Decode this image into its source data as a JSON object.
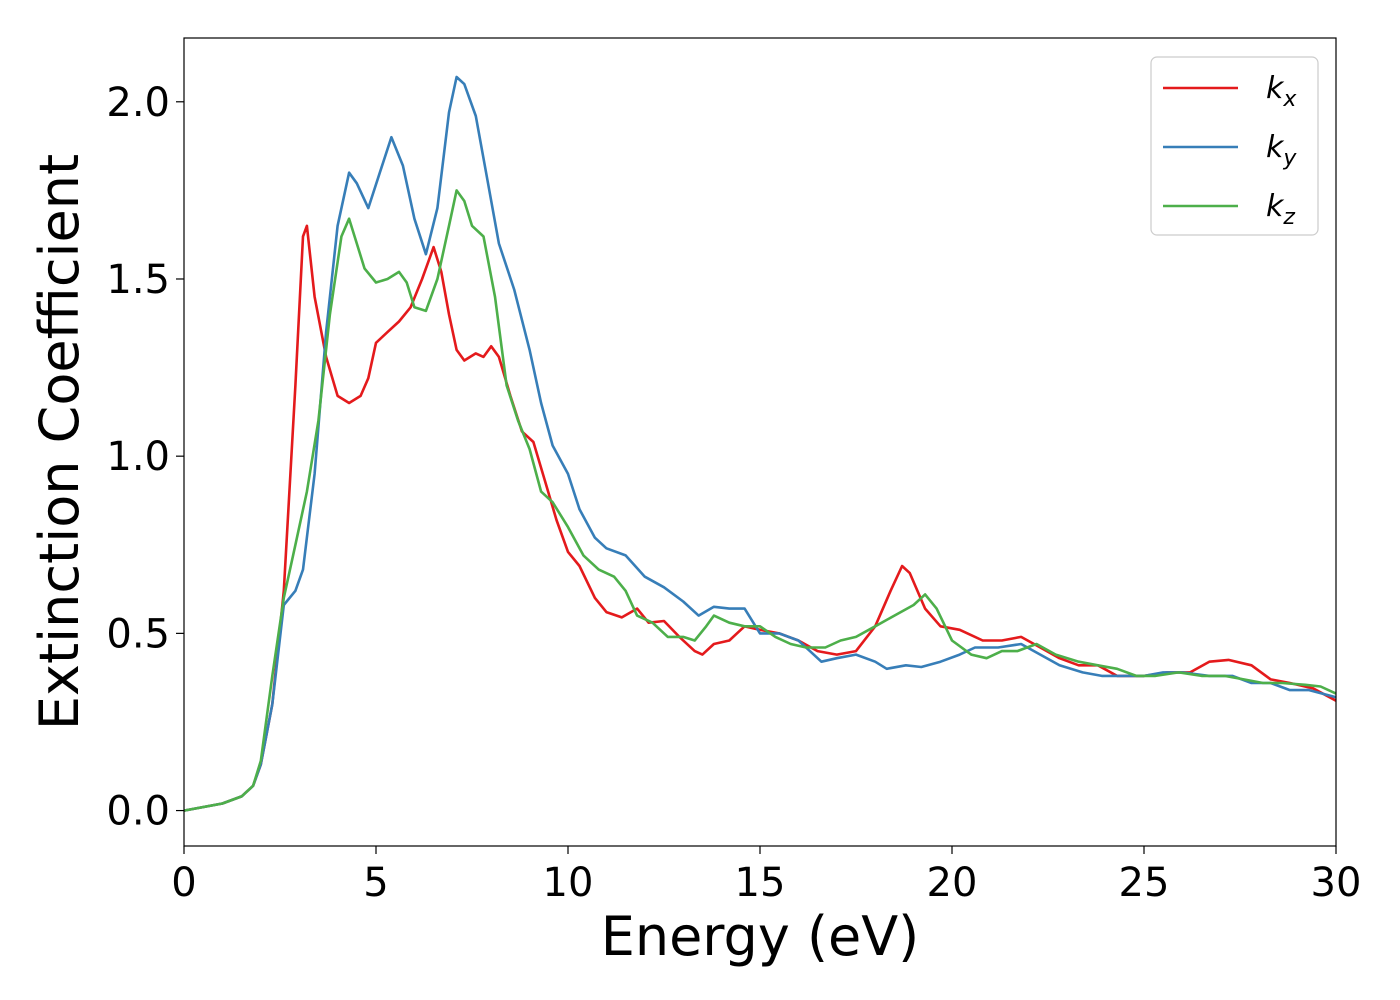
{
  "chart_data": {
    "type": "line",
    "xlabel": "Energy (eV)",
    "ylabel": "Extinction Coefficient",
    "xlim": [
      0,
      30
    ],
    "ylim": [
      -0.1,
      2.18
    ],
    "xticks": [
      "0",
      "5",
      "10",
      "15",
      "20",
      "25",
      "30"
    ],
    "yticks": [
      "0.0",
      "0.5",
      "1.0",
      "1.5",
      "2.0"
    ],
    "grid": false,
    "legend_position": "top-right",
    "series": [
      {
        "name": "k_x",
        "legend": {
          "base": "k",
          "sub": "x"
        },
        "color": "#e41a1c",
        "points": [
          [
            0,
            0
          ],
          [
            1,
            0.02
          ],
          [
            1.5,
            0.04
          ],
          [
            1.8,
            0.07
          ],
          [
            2,
            0.13
          ],
          [
            2.3,
            0.3
          ],
          [
            2.6,
            0.62
          ],
          [
            2.9,
            1.2
          ],
          [
            3.1,
            1.62
          ],
          [
            3.2,
            1.65
          ],
          [
            3.4,
            1.45
          ],
          [
            3.7,
            1.28
          ],
          [
            4,
            1.17
          ],
          [
            4.3,
            1.15
          ],
          [
            4.6,
            1.17
          ],
          [
            4.8,
            1.22
          ],
          [
            5,
            1.32
          ],
          [
            5.3,
            1.35
          ],
          [
            5.6,
            1.38
          ],
          [
            5.9,
            1.42
          ],
          [
            6.2,
            1.5
          ],
          [
            6.5,
            1.59
          ],
          [
            6.7,
            1.52
          ],
          [
            6.9,
            1.4
          ],
          [
            7.1,
            1.3
          ],
          [
            7.3,
            1.27
          ],
          [
            7.6,
            1.29
          ],
          [
            7.8,
            1.28
          ],
          [
            8,
            1.31
          ],
          [
            8.2,
            1.28
          ],
          [
            8.5,
            1.17
          ],
          [
            8.8,
            1.07
          ],
          [
            9.1,
            1.04
          ],
          [
            9.4,
            0.93
          ],
          [
            9.7,
            0.82
          ],
          [
            10,
            0.73
          ],
          [
            10.3,
            0.69
          ],
          [
            10.7,
            0.6
          ],
          [
            11,
            0.56
          ],
          [
            11.4,
            0.545
          ],
          [
            11.8,
            0.57
          ],
          [
            12.1,
            0.53
          ],
          [
            12.5,
            0.535
          ],
          [
            12.9,
            0.49
          ],
          [
            13.3,
            0.45
          ],
          [
            13.5,
            0.44
          ],
          [
            13.8,
            0.47
          ],
          [
            14.2,
            0.48
          ],
          [
            14.6,
            0.52
          ],
          [
            15,
            0.51
          ],
          [
            15.5,
            0.5
          ],
          [
            16,
            0.48
          ],
          [
            16.5,
            0.45
          ],
          [
            17,
            0.44
          ],
          [
            17.5,
            0.45
          ],
          [
            18,
            0.52
          ],
          [
            18.4,
            0.62
          ],
          [
            18.7,
            0.69
          ],
          [
            18.9,
            0.67
          ],
          [
            19.3,
            0.57
          ],
          [
            19.7,
            0.52
          ],
          [
            20.2,
            0.51
          ],
          [
            20.8,
            0.48
          ],
          [
            21.3,
            0.48
          ],
          [
            21.8,
            0.49
          ],
          [
            22.3,
            0.46
          ],
          [
            22.8,
            0.43
          ],
          [
            23.3,
            0.41
          ],
          [
            23.8,
            0.41
          ],
          [
            24.3,
            0.38
          ],
          [
            25,
            0.38
          ],
          [
            25.6,
            0.39
          ],
          [
            26.2,
            0.39
          ],
          [
            26.7,
            0.42
          ],
          [
            27.2,
            0.425
          ],
          [
            27.8,
            0.41
          ],
          [
            28.3,
            0.37
          ],
          [
            28.8,
            0.36
          ],
          [
            29.4,
            0.345
          ],
          [
            30,
            0.31
          ]
        ]
      },
      {
        "name": "k_y",
        "legend": {
          "base": "k",
          "sub": "y"
        },
        "color": "#377eb8",
        "points": [
          [
            0,
            0
          ],
          [
            1,
            0.02
          ],
          [
            1.5,
            0.04
          ],
          [
            1.8,
            0.07
          ],
          [
            2,
            0.13
          ],
          [
            2.3,
            0.3
          ],
          [
            2.6,
            0.58
          ],
          [
            2.9,
            0.62
          ],
          [
            3.1,
            0.68
          ],
          [
            3.4,
            0.95
          ],
          [
            3.7,
            1.35
          ],
          [
            4,
            1.65
          ],
          [
            4.3,
            1.8
          ],
          [
            4.5,
            1.77
          ],
          [
            4.8,
            1.7
          ],
          [
            5.1,
            1.8
          ],
          [
            5.4,
            1.9
          ],
          [
            5.7,
            1.82
          ],
          [
            6,
            1.67
          ],
          [
            6.3,
            1.57
          ],
          [
            6.6,
            1.7
          ],
          [
            6.9,
            1.97
          ],
          [
            7.1,
            2.07
          ],
          [
            7.3,
            2.05
          ],
          [
            7.6,
            1.96
          ],
          [
            7.9,
            1.78
          ],
          [
            8.2,
            1.6
          ],
          [
            8.6,
            1.47
          ],
          [
            9,
            1.3
          ],
          [
            9.3,
            1.15
          ],
          [
            9.6,
            1.03
          ],
          [
            10,
            0.95
          ],
          [
            10.3,
            0.85
          ],
          [
            10.7,
            0.77
          ],
          [
            11,
            0.74
          ],
          [
            11.5,
            0.72
          ],
          [
            12,
            0.66
          ],
          [
            12.5,
            0.63
          ],
          [
            13,
            0.59
          ],
          [
            13.4,
            0.55
          ],
          [
            13.8,
            0.575
          ],
          [
            14.2,
            0.57
          ],
          [
            14.6,
            0.57
          ],
          [
            15,
            0.5
          ],
          [
            15.5,
            0.5
          ],
          [
            16,
            0.48
          ],
          [
            16.3,
            0.45
          ],
          [
            16.6,
            0.42
          ],
          [
            17,
            0.43
          ],
          [
            17.5,
            0.44
          ],
          [
            18,
            0.42
          ],
          [
            18.3,
            0.4
          ],
          [
            18.8,
            0.41
          ],
          [
            19.2,
            0.405
          ],
          [
            19.7,
            0.42
          ],
          [
            20.2,
            0.44
          ],
          [
            20.6,
            0.46
          ],
          [
            21.2,
            0.46
          ],
          [
            21.8,
            0.47
          ],
          [
            22.3,
            0.44
          ],
          [
            22.8,
            0.41
          ],
          [
            23.4,
            0.39
          ],
          [
            23.9,
            0.38
          ],
          [
            24.4,
            0.38
          ],
          [
            25,
            0.38
          ],
          [
            25.5,
            0.39
          ],
          [
            26,
            0.39
          ],
          [
            26.7,
            0.38
          ],
          [
            27.3,
            0.38
          ],
          [
            27.8,
            0.36
          ],
          [
            28.3,
            0.36
          ],
          [
            28.8,
            0.34
          ],
          [
            29.3,
            0.34
          ],
          [
            30,
            0.32
          ]
        ]
      },
      {
        "name": "k_z",
        "legend": {
          "base": "k",
          "sub": "z"
        },
        "color": "#4daf4a",
        "points": [
          [
            0,
            0
          ],
          [
            1,
            0.02
          ],
          [
            1.5,
            0.04
          ],
          [
            1.8,
            0.07
          ],
          [
            2,
            0.14
          ],
          [
            2.3,
            0.38
          ],
          [
            2.6,
            0.6
          ],
          [
            2.9,
            0.75
          ],
          [
            3.2,
            0.9
          ],
          [
            3.5,
            1.1
          ],
          [
            3.8,
            1.4
          ],
          [
            4.1,
            1.62
          ],
          [
            4.3,
            1.67
          ],
          [
            4.5,
            1.6
          ],
          [
            4.7,
            1.53
          ],
          [
            5,
            1.49
          ],
          [
            5.3,
            1.5
          ],
          [
            5.6,
            1.52
          ],
          [
            5.8,
            1.49
          ],
          [
            6,
            1.42
          ],
          [
            6.3,
            1.41
          ],
          [
            6.6,
            1.5
          ],
          [
            6.9,
            1.65
          ],
          [
            7.1,
            1.75
          ],
          [
            7.3,
            1.72
          ],
          [
            7.5,
            1.65
          ],
          [
            7.8,
            1.62
          ],
          [
            8.1,
            1.45
          ],
          [
            8.4,
            1.2
          ],
          [
            8.7,
            1.1
          ],
          [
            9,
            1.02
          ],
          [
            9.3,
            0.9
          ],
          [
            9.6,
            0.87
          ],
          [
            10,
            0.8
          ],
          [
            10.4,
            0.72
          ],
          [
            10.8,
            0.68
          ],
          [
            11.2,
            0.66
          ],
          [
            11.5,
            0.62
          ],
          [
            11.8,
            0.55
          ],
          [
            12.2,
            0.53
          ],
          [
            12.6,
            0.49
          ],
          [
            13,
            0.49
          ],
          [
            13.3,
            0.48
          ],
          [
            13.6,
            0.52
          ],
          [
            13.8,
            0.55
          ],
          [
            14.2,
            0.53
          ],
          [
            14.6,
            0.52
          ],
          [
            15,
            0.52
          ],
          [
            15.4,
            0.49
          ],
          [
            15.8,
            0.47
          ],
          [
            16.2,
            0.46
          ],
          [
            16.7,
            0.46
          ],
          [
            17.1,
            0.48
          ],
          [
            17.5,
            0.49
          ],
          [
            18,
            0.52
          ],
          [
            18.5,
            0.55
          ],
          [
            19,
            0.58
          ],
          [
            19.3,
            0.61
          ],
          [
            19.6,
            0.57
          ],
          [
            20,
            0.48
          ],
          [
            20.5,
            0.44
          ],
          [
            20.9,
            0.43
          ],
          [
            21.3,
            0.45
          ],
          [
            21.7,
            0.45
          ],
          [
            22.2,
            0.47
          ],
          [
            22.7,
            0.44
          ],
          [
            23.3,
            0.42
          ],
          [
            23.8,
            0.41
          ],
          [
            24.3,
            0.4
          ],
          [
            24.8,
            0.38
          ],
          [
            25.3,
            0.38
          ],
          [
            25.9,
            0.39
          ],
          [
            26.5,
            0.38
          ],
          [
            27.1,
            0.38
          ],
          [
            27.6,
            0.37
          ],
          [
            28.1,
            0.36
          ],
          [
            28.6,
            0.36
          ],
          [
            29.2,
            0.355
          ],
          [
            29.6,
            0.35
          ],
          [
            30,
            0.33
          ]
        ]
      }
    ]
  }
}
